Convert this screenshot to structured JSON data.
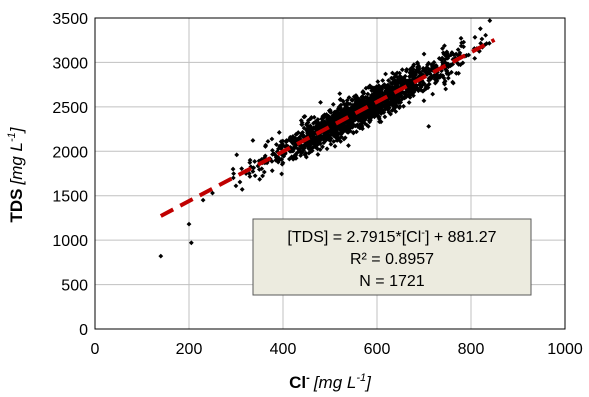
{
  "chart_data": {
    "type": "scatter",
    "title": "",
    "xlabel": {
      "main": "Cl",
      "sup": "-",
      "unit": "[mg L",
      "unit_sup": "-1",
      "unit_end": "]"
    },
    "ylabel": {
      "main": "TDS",
      "unit": "[mg L",
      "unit_sup": "-1",
      "unit_end": "]"
    },
    "xlim": [
      0,
      1000
    ],
    "ylim": [
      0,
      3500
    ],
    "xticks": [
      0,
      200,
      400,
      600,
      800,
      1000
    ],
    "yticks": [
      0,
      500,
      1000,
      1500,
      2000,
      2500,
      3000,
      3500
    ],
    "grid": true,
    "n": 1721,
    "regression": {
      "slope": 2.7915,
      "intercept": 881.27,
      "x_range": [
        140,
        850
      ],
      "color": "#c00000"
    },
    "annotation": {
      "line1": {
        "a": "[TDS] = 2.7915*[Cl",
        "sup": "-",
        "b": "] + 881.27"
      },
      "line2": "R² = 0.8957",
      "line3": "N = 1721"
    },
    "outliers": [
      [
        140,
        820
      ],
      [
        205,
        970
      ],
      [
        200,
        1180
      ],
      [
        230,
        1450
      ],
      [
        250,
        1530
      ],
      [
        780,
        3220
      ],
      [
        840,
        3470
      ],
      [
        820,
        3380
      ],
      [
        330,
        1900
      ],
      [
        710,
        2280
      ]
    ],
    "colors": {
      "points": "#000000",
      "grid": "#c0c0c0",
      "box_fill": "#ecebdf",
      "box_border": "#595959"
    }
  }
}
